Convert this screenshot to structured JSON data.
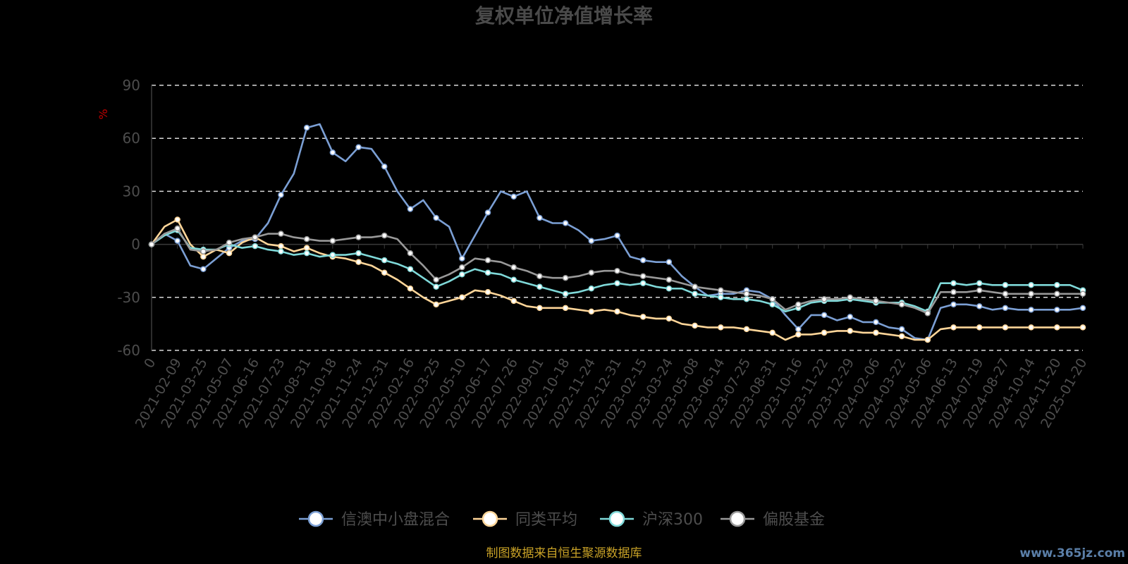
{
  "chart_data": {
    "type": "line",
    "title": "复权单位净值增长率",
    "ylabel": "%",
    "ylim": [
      -60,
      90
    ],
    "yticks": [
      90,
      60,
      30,
      0,
      -30,
      -60
    ],
    "grid": true,
    "legend_position": "bottom",
    "x_tick_labels": [
      "0",
      "2021-02-09",
      "2021-03-25",
      "2021-05-07",
      "2021-06-16",
      "2021-07-23",
      "2021-08-31",
      "2021-10-18",
      "2021-11-24",
      "2021-12-31",
      "2022-02-16",
      "2022-03-25",
      "2022-05-10",
      "2022-06-17",
      "2022-07-26",
      "2022-09-01",
      "2022-10-18",
      "2022-11-24",
      "2022-12-31",
      "2023-02-15",
      "2023-03-24",
      "2023-05-08",
      "2023-06-14",
      "2023-07-25",
      "2023-08-31",
      "2023-10-16",
      "2023-11-22",
      "2023-12-29",
      "2024-02-06",
      "2024-03-22",
      "2024-05-06",
      "2024-06-13",
      "2024-07-19",
      "2024-08-27",
      "2024-10-14",
      "2024-11-20",
      "2025-01-20"
    ],
    "x": [
      0,
      0.5,
      1,
      1.5,
      2,
      2.5,
      3,
      3.5,
      4,
      4.5,
      5,
      5.5,
      6,
      6.5,
      7,
      7.5,
      8,
      8.5,
      9,
      9.5,
      10,
      10.5,
      11,
      11.5,
      12,
      12.5,
      13,
      13.5,
      14,
      14.5,
      15,
      15.5,
      16,
      16.5,
      17,
      17.5,
      18,
      18.5,
      19,
      19.5,
      20,
      20.5,
      21,
      21.5,
      22,
      22.5,
      23,
      23.5,
      24,
      24.5,
      25,
      25.5,
      26,
      26.5,
      27,
      27.5,
      28,
      28.5,
      29,
      29.5,
      30,
      30.5,
      31,
      31.5,
      32,
      32.5,
      33,
      33.5,
      34,
      34.5,
      35,
      35.5,
      36
    ],
    "series": [
      {
        "name": "信澳中小盘混合",
        "color": "#7b9fd4",
        "values": [
          0,
          6,
          2,
          -12,
          -14,
          -8,
          -2,
          2,
          3,
          12,
          28,
          40,
          66,
          68,
          52,
          47,
          55,
          54,
          44,
          30,
          20,
          25,
          15,
          10,
          -8,
          5,
          18,
          30,
          27,
          30,
          15,
          12,
          12,
          8,
          2,
          3,
          5,
          -7,
          -9,
          -10,
          -10,
          -18,
          -24,
          -29,
          -28,
          -28,
          -26,
          -27,
          -31,
          -40,
          -48,
          -40,
          -40,
          -43,
          -41,
          -44,
          -44,
          -47,
          -48,
          -53,
          -54,
          -36,
          -34,
          -34,
          -35,
          -37,
          -36,
          -37,
          -37,
          -37,
          -37,
          -37,
          -36
        ]
      },
      {
        "name": "同类平均",
        "color": "#ffd699",
        "values": [
          0,
          10,
          14,
          0,
          -7,
          -3,
          -5,
          1,
          4,
          0,
          -1,
          -4,
          -2,
          -5,
          -7,
          -8,
          -10,
          -12,
          -16,
          -20,
          -25,
          -30,
          -34,
          -32,
          -30,
          -26,
          -27,
          -29,
          -32,
          -35,
          -36,
          -36,
          -36,
          -37,
          -38,
          -37,
          -38,
          -40,
          -41,
          -42,
          -42,
          -45,
          -46,
          -47,
          -47,
          -47,
          -48,
          -49,
          -50,
          -54,
          -51,
          -51,
          -50,
          -49,
          -49,
          -50,
          -50,
          -51,
          -52,
          -54,
          -54,
          -48,
          -47,
          -47,
          -47,
          -47,
          -47,
          -47,
          -47,
          -47,
          -47,
          -47,
          -47
        ]
      },
      {
        "name": "沪深300",
        "color": "#7fd9d9",
        "values": [
          0,
          5,
          8,
          -2,
          -3,
          -3,
          0,
          -2,
          -1,
          -3,
          -4,
          -6,
          -5,
          -7,
          -6,
          -6,
          -5,
          -7,
          -9,
          -11,
          -14,
          -19,
          -24,
          -21,
          -17,
          -14,
          -16,
          -17,
          -20,
          -22,
          -24,
          -26,
          -28,
          -27,
          -25,
          -23,
          -22,
          -23,
          -22,
          -24,
          -25,
          -25,
          -28,
          -29,
          -30,
          -31,
          -31,
          -32,
          -34,
          -38,
          -36,
          -33,
          -32,
          -32,
          -31,
          -32,
          -33,
          -33,
          -33,
          -35,
          -38,
          -22,
          -22,
          -23,
          -22,
          -23,
          -23,
          -23,
          -23,
          -23,
          -23,
          -23,
          -26
        ]
      },
      {
        "name": "偏股基金",
        "color": "#999999",
        "values": [
          0,
          6,
          9,
          -3,
          -4,
          -3,
          1,
          3,
          4,
          6,
          6,
          4,
          3,
          2,
          2,
          3,
          4,
          4,
          5,
          3,
          -5,
          -12,
          -20,
          -17,
          -13,
          -8,
          -9,
          -10,
          -13,
          -15,
          -18,
          -19,
          -19,
          -18,
          -16,
          -15,
          -15,
          -17,
          -18,
          -19,
          -20,
          -22,
          -24,
          -25,
          -26,
          -27,
          -28,
          -29,
          -31,
          -37,
          -34,
          -32,
          -31,
          -31,
          -30,
          -31,
          -32,
          -33,
          -34,
          -36,
          -39,
          -27,
          -27,
          -27,
          -26,
          -27,
          -28,
          -28,
          -28,
          -28,
          -28,
          -28,
          -28
        ]
      }
    ]
  },
  "footer": {
    "source": "制图数据来自恒生聚源数据库",
    "watermark": "www.365jz.com"
  }
}
